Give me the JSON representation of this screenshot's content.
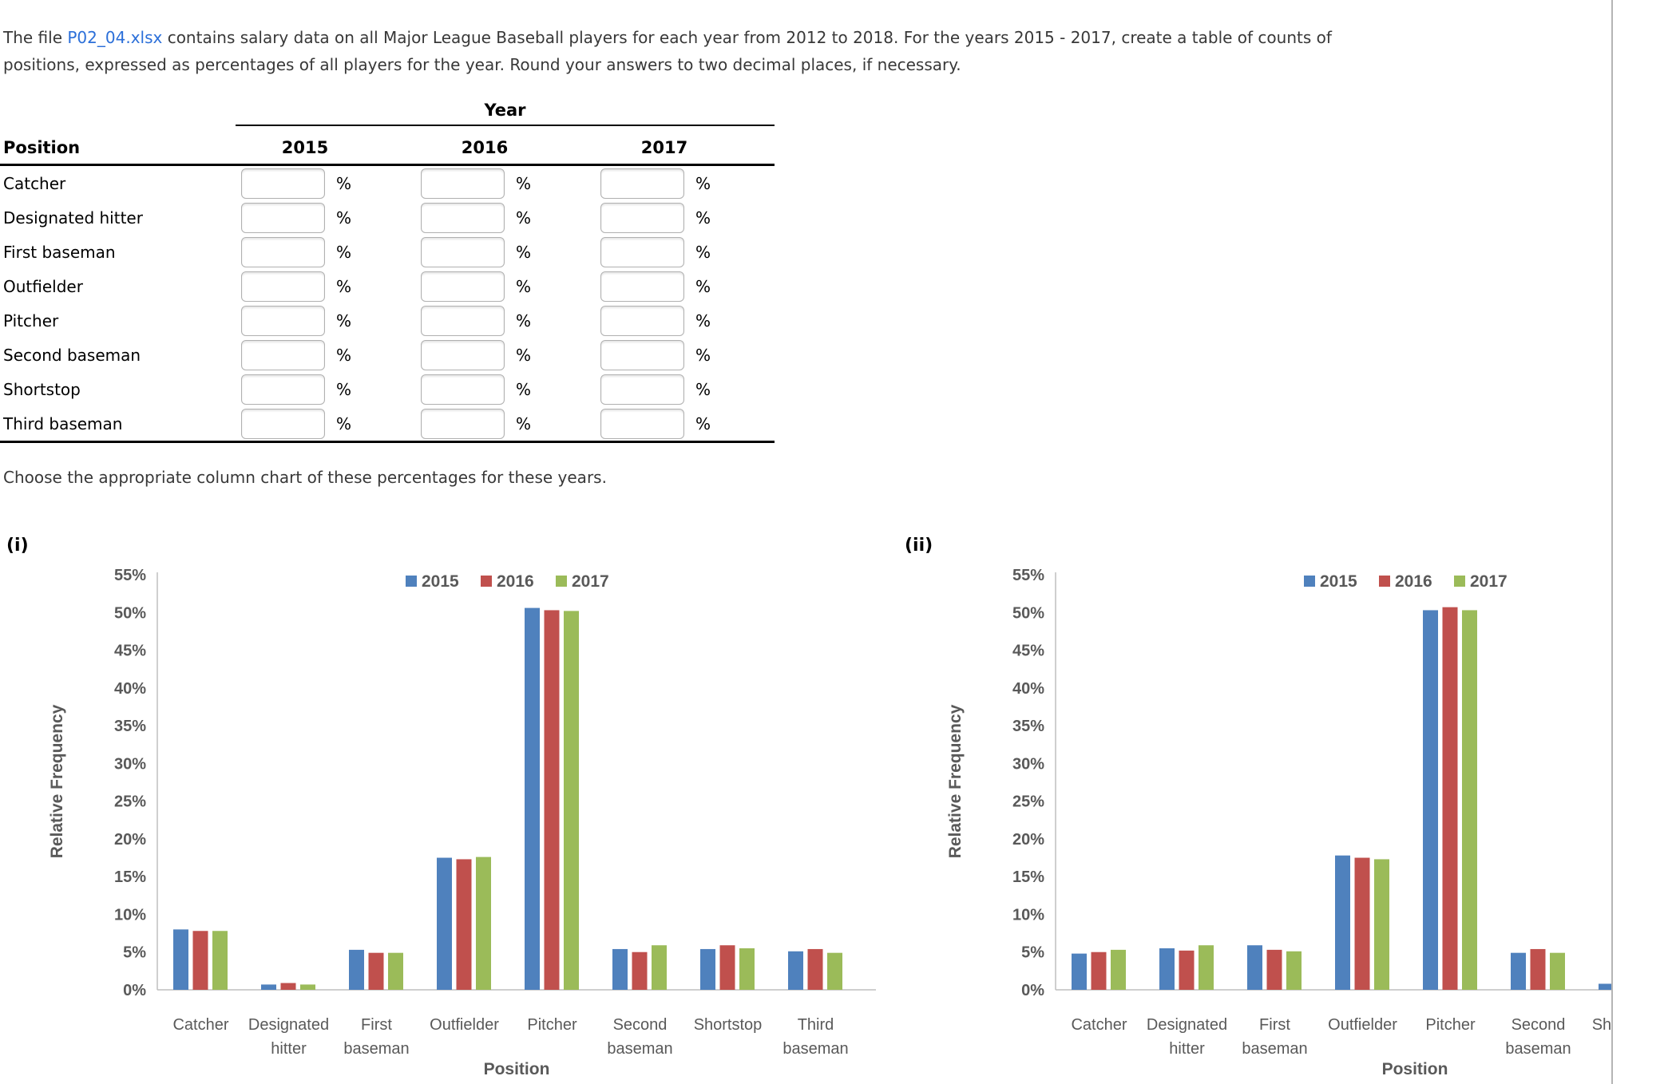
{
  "page": {
    "intro": {
      "text_before_link": "The file ",
      "link_text": "P02_04.xlsx",
      "line1_after_link": " contains salary data on all Major League Baseball players for each year from 2012 to 2018. For the years 2015 - 2017, create a table of counts of",
      "line2": "positions, expressed as percentages of all players for the year. Round your answers to two decimal places, if necessary."
    },
    "choose_text": "Choose the appropriate column chart of these percentages for these years.",
    "option_i_label": "(i)",
    "option_ii_label": "(ii)"
  },
  "table": {
    "year_header": "Year",
    "position_header": "Position",
    "year_columns": [
      "2015",
      "2016",
      "2017"
    ],
    "rows": [
      "Catcher",
      "Designated hitter",
      "First baseman",
      "Outfielder",
      "Pitcher",
      "Second baseman",
      "Shortstop",
      "Third baseman"
    ],
    "input_value": "",
    "percent_sign": "%"
  },
  "colors": {
    "series": [
      "#4F81BD",
      "#C0504D",
      "#9BBB59"
    ],
    "axis_line": "#BFBFBF",
    "chart_text": "#595959",
    "link": "#2b6fd9",
    "content_border": "#b5b5b5"
  },
  "chart_data": [
    {
      "id": "i",
      "type": "bar",
      "title": "",
      "xlabel": "Position",
      "ylabel": "Relative Frequency",
      "ylim": [
        0,
        55
      ],
      "ytick_step": 5,
      "ytick_suffix": "%",
      "grid": false,
      "legend_position": "top-right-inside",
      "categories": [
        "Catcher",
        "Designated hitter",
        "First baseman",
        "Outfielder",
        "Pitcher",
        "Second baseman",
        "Shortstop",
        "Third baseman"
      ],
      "series": [
        {
          "name": "2015",
          "values": [
            8.0,
            0.7,
            5.3,
            17.5,
            50.6,
            5.4,
            5.4,
            5.1
          ]
        },
        {
          "name": "2016",
          "values": [
            7.8,
            0.9,
            4.9,
            17.3,
            50.3,
            5.0,
            5.9,
            5.4
          ]
        },
        {
          "name": "2017",
          "values": [
            7.8,
            0.7,
            4.9,
            17.6,
            50.2,
            5.9,
            5.5,
            4.9
          ]
        }
      ]
    },
    {
      "id": "ii",
      "type": "bar",
      "title": "",
      "xlabel": "Position",
      "ylabel": "Relative Frequency",
      "ylim": [
        0,
        55
      ],
      "ytick_step": 5,
      "ytick_suffix": "%",
      "grid": false,
      "legend_position": "top-right-inside",
      "clipped_right": true,
      "categories": [
        "Catcher",
        "Designated hitter",
        "First baseman",
        "Outfielder",
        "Pitcher",
        "Second baseman",
        "Shortstop"
      ],
      "series": [
        {
          "name": "2015",
          "values": [
            4.8,
            5.5,
            5.9,
            17.8,
            50.3,
            4.9,
            0.8
          ]
        },
        {
          "name": "2016",
          "values": [
            5.0,
            5.2,
            5.3,
            17.5,
            50.7,
            5.4,
            null
          ]
        },
        {
          "name": "2017",
          "values": [
            5.3,
            5.9,
            5.1,
            17.3,
            50.3,
            4.9,
            null
          ]
        }
      ]
    }
  ]
}
